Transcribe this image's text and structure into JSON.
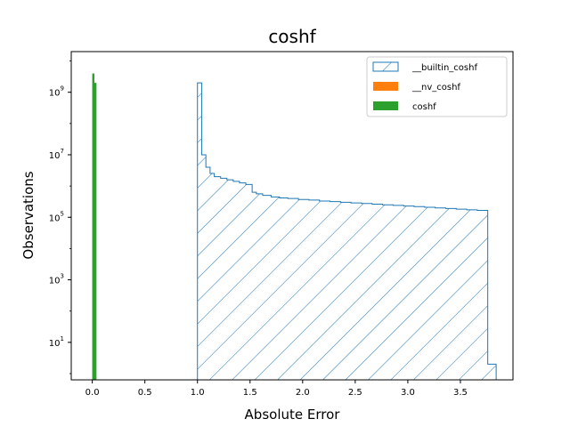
{
  "chart_data": {
    "type": "bar",
    "title": "coshf",
    "xlabel": "Absolute Error",
    "ylabel": "Observations",
    "xlim": [
      -0.2,
      4.0
    ],
    "ylim_log10": [
      -0.2,
      10.3
    ],
    "yscale": "log",
    "grid": false,
    "legend_placement": "top-right",
    "x_ticks": [
      {
        "value": 0.0,
        "label": "0.0"
      },
      {
        "value": 0.5,
        "label": "0.5"
      },
      {
        "value": 1.0,
        "label": "1.0"
      },
      {
        "value": 1.5,
        "label": "1.5"
      },
      {
        "value": 2.0,
        "label": "2.0"
      },
      {
        "value": 2.5,
        "label": "2.5"
      },
      {
        "value": 3.0,
        "label": "3.0"
      },
      {
        "value": 3.5,
        "label": "3.5"
      }
    ],
    "y_ticks": [
      {
        "exp": 1,
        "base": "10",
        "sup": "1"
      },
      {
        "exp": 3,
        "base": "10",
        "sup": "3"
      },
      {
        "exp": 5,
        "base": "10",
        "sup": "5"
      },
      {
        "exp": 7,
        "base": "10",
        "sup": "7"
      },
      {
        "exp": 9,
        "base": "10",
        "sup": "9"
      }
    ],
    "series": [
      {
        "name": "__builtin_coshf",
        "style": "hatched-step",
        "color": "#1f77b4",
        "bins": [
          [
            1.0,
            9.3
          ],
          [
            1.04,
            7.0
          ],
          [
            1.08,
            6.6
          ],
          [
            1.12,
            6.4
          ],
          [
            1.16,
            6.3
          ],
          [
            1.22,
            6.25
          ],
          [
            1.28,
            6.2
          ],
          [
            1.34,
            6.15
          ],
          [
            1.4,
            6.1
          ],
          [
            1.46,
            6.05
          ],
          [
            1.52,
            5.8
          ],
          [
            1.56,
            5.75
          ],
          [
            1.62,
            5.7
          ],
          [
            1.7,
            5.65
          ],
          [
            1.78,
            5.62
          ],
          [
            1.86,
            5.6
          ],
          [
            1.96,
            5.57
          ],
          [
            2.06,
            5.55
          ],
          [
            2.16,
            5.52
          ],
          [
            2.26,
            5.5
          ],
          [
            2.36,
            5.48
          ],
          [
            2.46,
            5.46
          ],
          [
            2.56,
            5.44
          ],
          [
            2.66,
            5.42
          ],
          [
            2.76,
            5.4
          ],
          [
            2.86,
            5.38
          ],
          [
            2.96,
            5.36
          ],
          [
            3.06,
            5.34
          ],
          [
            3.16,
            5.32
          ],
          [
            3.26,
            5.3
          ],
          [
            3.36,
            5.28
          ],
          [
            3.46,
            5.26
          ],
          [
            3.56,
            5.24
          ],
          [
            3.66,
            5.22
          ],
          [
            3.76,
            0.3
          ],
          [
            3.8,
            0.3
          ]
        ],
        "end_x": 3.8
      },
      {
        "name": "__nv_coshf",
        "style": "bar",
        "color": "#ff7f0e",
        "bars": [
          [
            0.0,
            0.02,
            9.5
          ]
        ]
      },
      {
        "name": "coshf",
        "style": "bar",
        "color": "#2ca02c",
        "bars": [
          [
            0.0,
            0.02,
            9.6
          ],
          [
            0.02,
            0.04,
            9.3
          ]
        ]
      }
    ]
  }
}
